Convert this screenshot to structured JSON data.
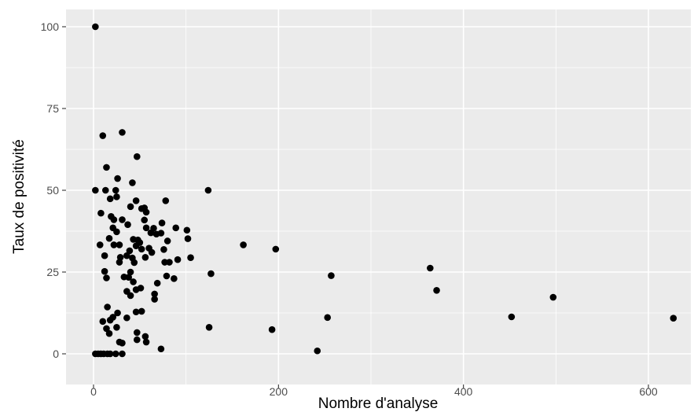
{
  "chart_data": {
    "type": "scatter",
    "xlabel": "Nombre d'analyse",
    "ylabel": "Taux de positivité",
    "xlim": [
      -30,
      640
    ],
    "ylim": [
      -3,
      104
    ],
    "x_ticks": [
      0,
      200,
      400,
      600
    ],
    "y_ticks": [
      0,
      25,
      50,
      75,
      100
    ],
    "x_tick_labels": [
      "0",
      "200",
      "400",
      "600"
    ],
    "y_tick_labels": [
      "0",
      "25",
      "50",
      "75",
      "100"
    ],
    "grid": true,
    "colors": {
      "panel": "#ebebeb",
      "grid": "#ffffff",
      "point": "#000000"
    },
    "points": [
      {
        "x": 2,
        "y": 100
      },
      {
        "x": 2,
        "y": 50
      },
      {
        "x": 2,
        "y": 0
      },
      {
        "x": 5,
        "y": 0
      },
      {
        "x": 8,
        "y": 0
      },
      {
        "x": 11,
        "y": 0
      },
      {
        "x": 15,
        "y": 0
      },
      {
        "x": 18,
        "y": 0
      },
      {
        "x": 24,
        "y": 0
      },
      {
        "x": 31,
        "y": 0
      },
      {
        "x": 10,
        "y": 66.7
      },
      {
        "x": 31,
        "y": 67.7
      },
      {
        "x": 14,
        "y": 57
      },
      {
        "x": 47,
        "y": 60.3
      },
      {
        "x": 26,
        "y": 53.6
      },
      {
        "x": 42,
        "y": 52.3
      },
      {
        "x": 13,
        "y": 50
      },
      {
        "x": 24,
        "y": 50
      },
      {
        "x": 124,
        "y": 50
      },
      {
        "x": 18,
        "y": 47.4
      },
      {
        "x": 25,
        "y": 48
      },
      {
        "x": 46,
        "y": 46.8
      },
      {
        "x": 78,
        "y": 46.8
      },
      {
        "x": 8,
        "y": 43
      },
      {
        "x": 40,
        "y": 45
      },
      {
        "x": 52,
        "y": 44.4
      },
      {
        "x": 55,
        "y": 44.6
      },
      {
        "x": 57,
        "y": 43.3
      },
      {
        "x": 19,
        "y": 42
      },
      {
        "x": 22,
        "y": 41
      },
      {
        "x": 31,
        "y": 41
      },
      {
        "x": 55,
        "y": 40.9
      },
      {
        "x": 74,
        "y": 40
      },
      {
        "x": 21,
        "y": 38.5
      },
      {
        "x": 37,
        "y": 39.5
      },
      {
        "x": 57,
        "y": 38.5
      },
      {
        "x": 65,
        "y": 38.4
      },
      {
        "x": 89,
        "y": 38.5
      },
      {
        "x": 101,
        "y": 37.8
      },
      {
        "x": 25,
        "y": 37.3
      },
      {
        "x": 62,
        "y": 37
      },
      {
        "x": 68,
        "y": 36.6
      },
      {
        "x": 73,
        "y": 36.9
      },
      {
        "x": 17,
        "y": 35.3
      },
      {
        "x": 43,
        "y": 35
      },
      {
        "x": 48,
        "y": 34.8
      },
      {
        "x": 80,
        "y": 34.5
      },
      {
        "x": 102,
        "y": 35.2
      },
      {
        "x": 7,
        "y": 33.3
      },
      {
        "x": 22,
        "y": 33.3
      },
      {
        "x": 28,
        "y": 33.3
      },
      {
        "x": 46,
        "y": 33
      },
      {
        "x": 50,
        "y": 34
      },
      {
        "x": 162,
        "y": 33.3
      },
      {
        "x": 39,
        "y": 31.5
      },
      {
        "x": 52,
        "y": 32
      },
      {
        "x": 60,
        "y": 32.3
      },
      {
        "x": 63,
        "y": 31
      },
      {
        "x": 76,
        "y": 31.9
      },
      {
        "x": 197,
        "y": 32
      },
      {
        "x": 12,
        "y": 30
      },
      {
        "x": 29,
        "y": 29.5
      },
      {
        "x": 36,
        "y": 30
      },
      {
        "x": 42,
        "y": 29.3
      },
      {
        "x": 56,
        "y": 29.5
      },
      {
        "x": 91,
        "y": 28.8
      },
      {
        "x": 105,
        "y": 29.4
      },
      {
        "x": 28,
        "y": 28
      },
      {
        "x": 44,
        "y": 27.9
      },
      {
        "x": 77,
        "y": 28
      },
      {
        "x": 82,
        "y": 28
      },
      {
        "x": 364,
        "y": 26.2
      },
      {
        "x": 12,
        "y": 25.2
      },
      {
        "x": 40,
        "y": 25
      },
      {
        "x": 127,
        "y": 24.5
      },
      {
        "x": 14,
        "y": 23.2
      },
      {
        "x": 33,
        "y": 23.5
      },
      {
        "x": 38,
        "y": 23.4
      },
      {
        "x": 79,
        "y": 23.8
      },
      {
        "x": 87,
        "y": 23
      },
      {
        "x": 257,
        "y": 23.9
      },
      {
        "x": 43,
        "y": 22
      },
      {
        "x": 69,
        "y": 21.6
      },
      {
        "x": 46,
        "y": 19.6
      },
      {
        "x": 51,
        "y": 20.1
      },
      {
        "x": 36,
        "y": 19.1
      },
      {
        "x": 40,
        "y": 17.8
      },
      {
        "x": 66,
        "y": 18.3
      },
      {
        "x": 66,
        "y": 16.7
      },
      {
        "x": 371,
        "y": 19.4
      },
      {
        "x": 497,
        "y": 17.3
      },
      {
        "x": 15,
        "y": 14.3
      },
      {
        "x": 46,
        "y": 12.8
      },
      {
        "x": 52,
        "y": 13
      },
      {
        "x": 26,
        "y": 12.5
      },
      {
        "x": 21,
        "y": 11.2
      },
      {
        "x": 36,
        "y": 11
      },
      {
        "x": 253,
        "y": 11.1
      },
      {
        "x": 452,
        "y": 11.3
      },
      {
        "x": 627,
        "y": 10.9
      },
      {
        "x": 10,
        "y": 9.9
      },
      {
        "x": 18,
        "y": 10.3
      },
      {
        "x": 25,
        "y": 8.1
      },
      {
        "x": 14,
        "y": 7.7
      },
      {
        "x": 125,
        "y": 8.1
      },
      {
        "x": 193,
        "y": 7.4
      },
      {
        "x": 17,
        "y": 6.2
      },
      {
        "x": 47,
        "y": 6.5
      },
      {
        "x": 56,
        "y": 5.3
      },
      {
        "x": 47,
        "y": 4.3
      },
      {
        "x": 57,
        "y": 3.6
      },
      {
        "x": 28,
        "y": 3.6
      },
      {
        "x": 31,
        "y": 3.3
      },
      {
        "x": 73,
        "y": 1.5
      },
      {
        "x": 242,
        "y": 0.9
      }
    ]
  }
}
